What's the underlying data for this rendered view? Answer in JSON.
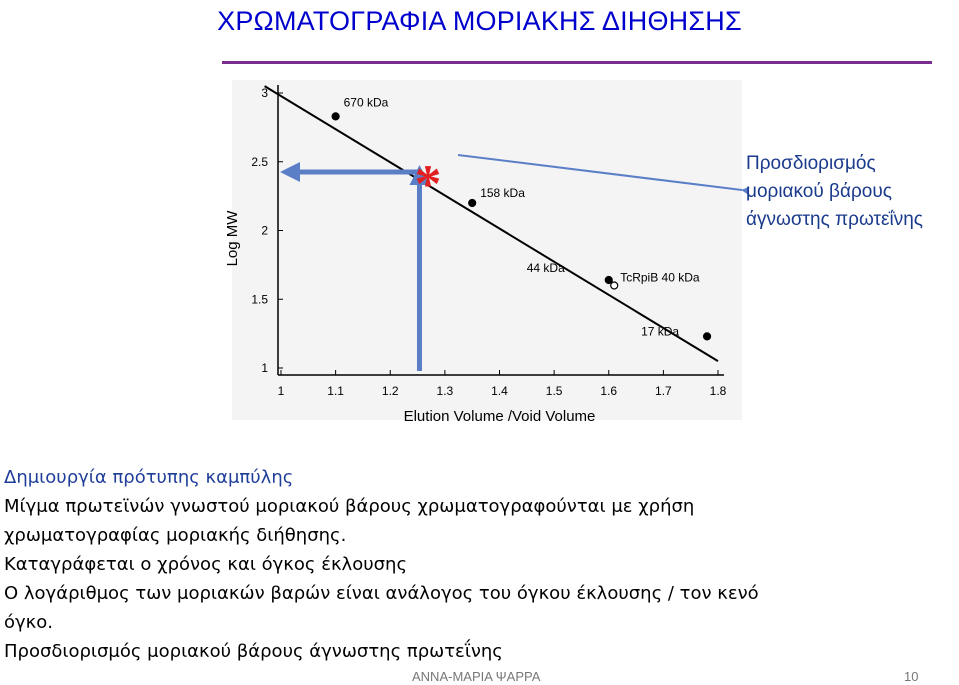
{
  "slide": {
    "title": "ΧΡΩΜΑΤΟΓΡΑΦΙΑ ΜΟΡΙΑΚΗΣ ΔΙΗΘΗΣΗΣ",
    "title_color": "#0000cc",
    "rule_color": "#7b2d8e",
    "side_note": [
      "Προσδιορισμός",
      "μοριακού βάρους",
      "άγνωστης πρωτεΐνης"
    ],
    "body_heading": "Δημιουργία πρότυπης καμπύλης",
    "body_lines": [
      "Μίγμα πρωτεϊνών γνωστού μοριακού βάρους χρωματογραφούνται με χρήση",
      "χρωματογραφίας μοριακής διήθησης.",
      "Καταγράφεται ο χρόνος  και όγκος έκλουσης",
      "Ο λογάριθμος των μοριακών βαρών είναι ανάλογος του όγκου έκλουσης / τον κενό",
      "όγκο.",
      "Προσδιορισμός μοριακού βάρους άγνωστης πρωτεΐνης"
    ],
    "footer_author": "ΑΝΝΑ-ΜΑΡΙΑ ΨΑΡΡΑ",
    "footer_page": "10"
  },
  "chart_data": {
    "type": "scatter",
    "xlabel": "Elution Volume /Void Volume",
    "ylabel": "Log MW",
    "xlim": [
      1,
      1.8
    ],
    "ylim": [
      1,
      3
    ],
    "xticks": [
      "1",
      "1.1",
      "1.2",
      "1.3",
      "1.4",
      "1.5",
      "1.6",
      "1.7",
      "1.8"
    ],
    "yticks": [
      "1",
      "1.5",
      "2",
      "2.5",
      "3"
    ],
    "fit_line": [
      [
        0.97,
        3.05
      ],
      [
        1.8,
        1.05
      ]
    ],
    "points": [
      {
        "label": "670 kDa",
        "x": 1.1,
        "y": 2.83,
        "filled": true
      },
      {
        "label": "158 kDa",
        "x": 1.35,
        "y": 2.2,
        "filled": true
      },
      {
        "label": "44 kDa",
        "x": 1.6,
        "y": 1.64,
        "filled": true
      },
      {
        "label": "TcRpiB 40 kDa",
        "x": 1.61,
        "y": 1.6,
        "filled": false
      },
      {
        "label": "17 kDa",
        "x": 1.78,
        "y": 1.23,
        "filled": true
      }
    ],
    "unknown_marker": {
      "symbol": "*",
      "x": 1.27,
      "y": 2.44
    },
    "arrow_color": "#5b7fc7",
    "marker_color": "#e02020"
  }
}
